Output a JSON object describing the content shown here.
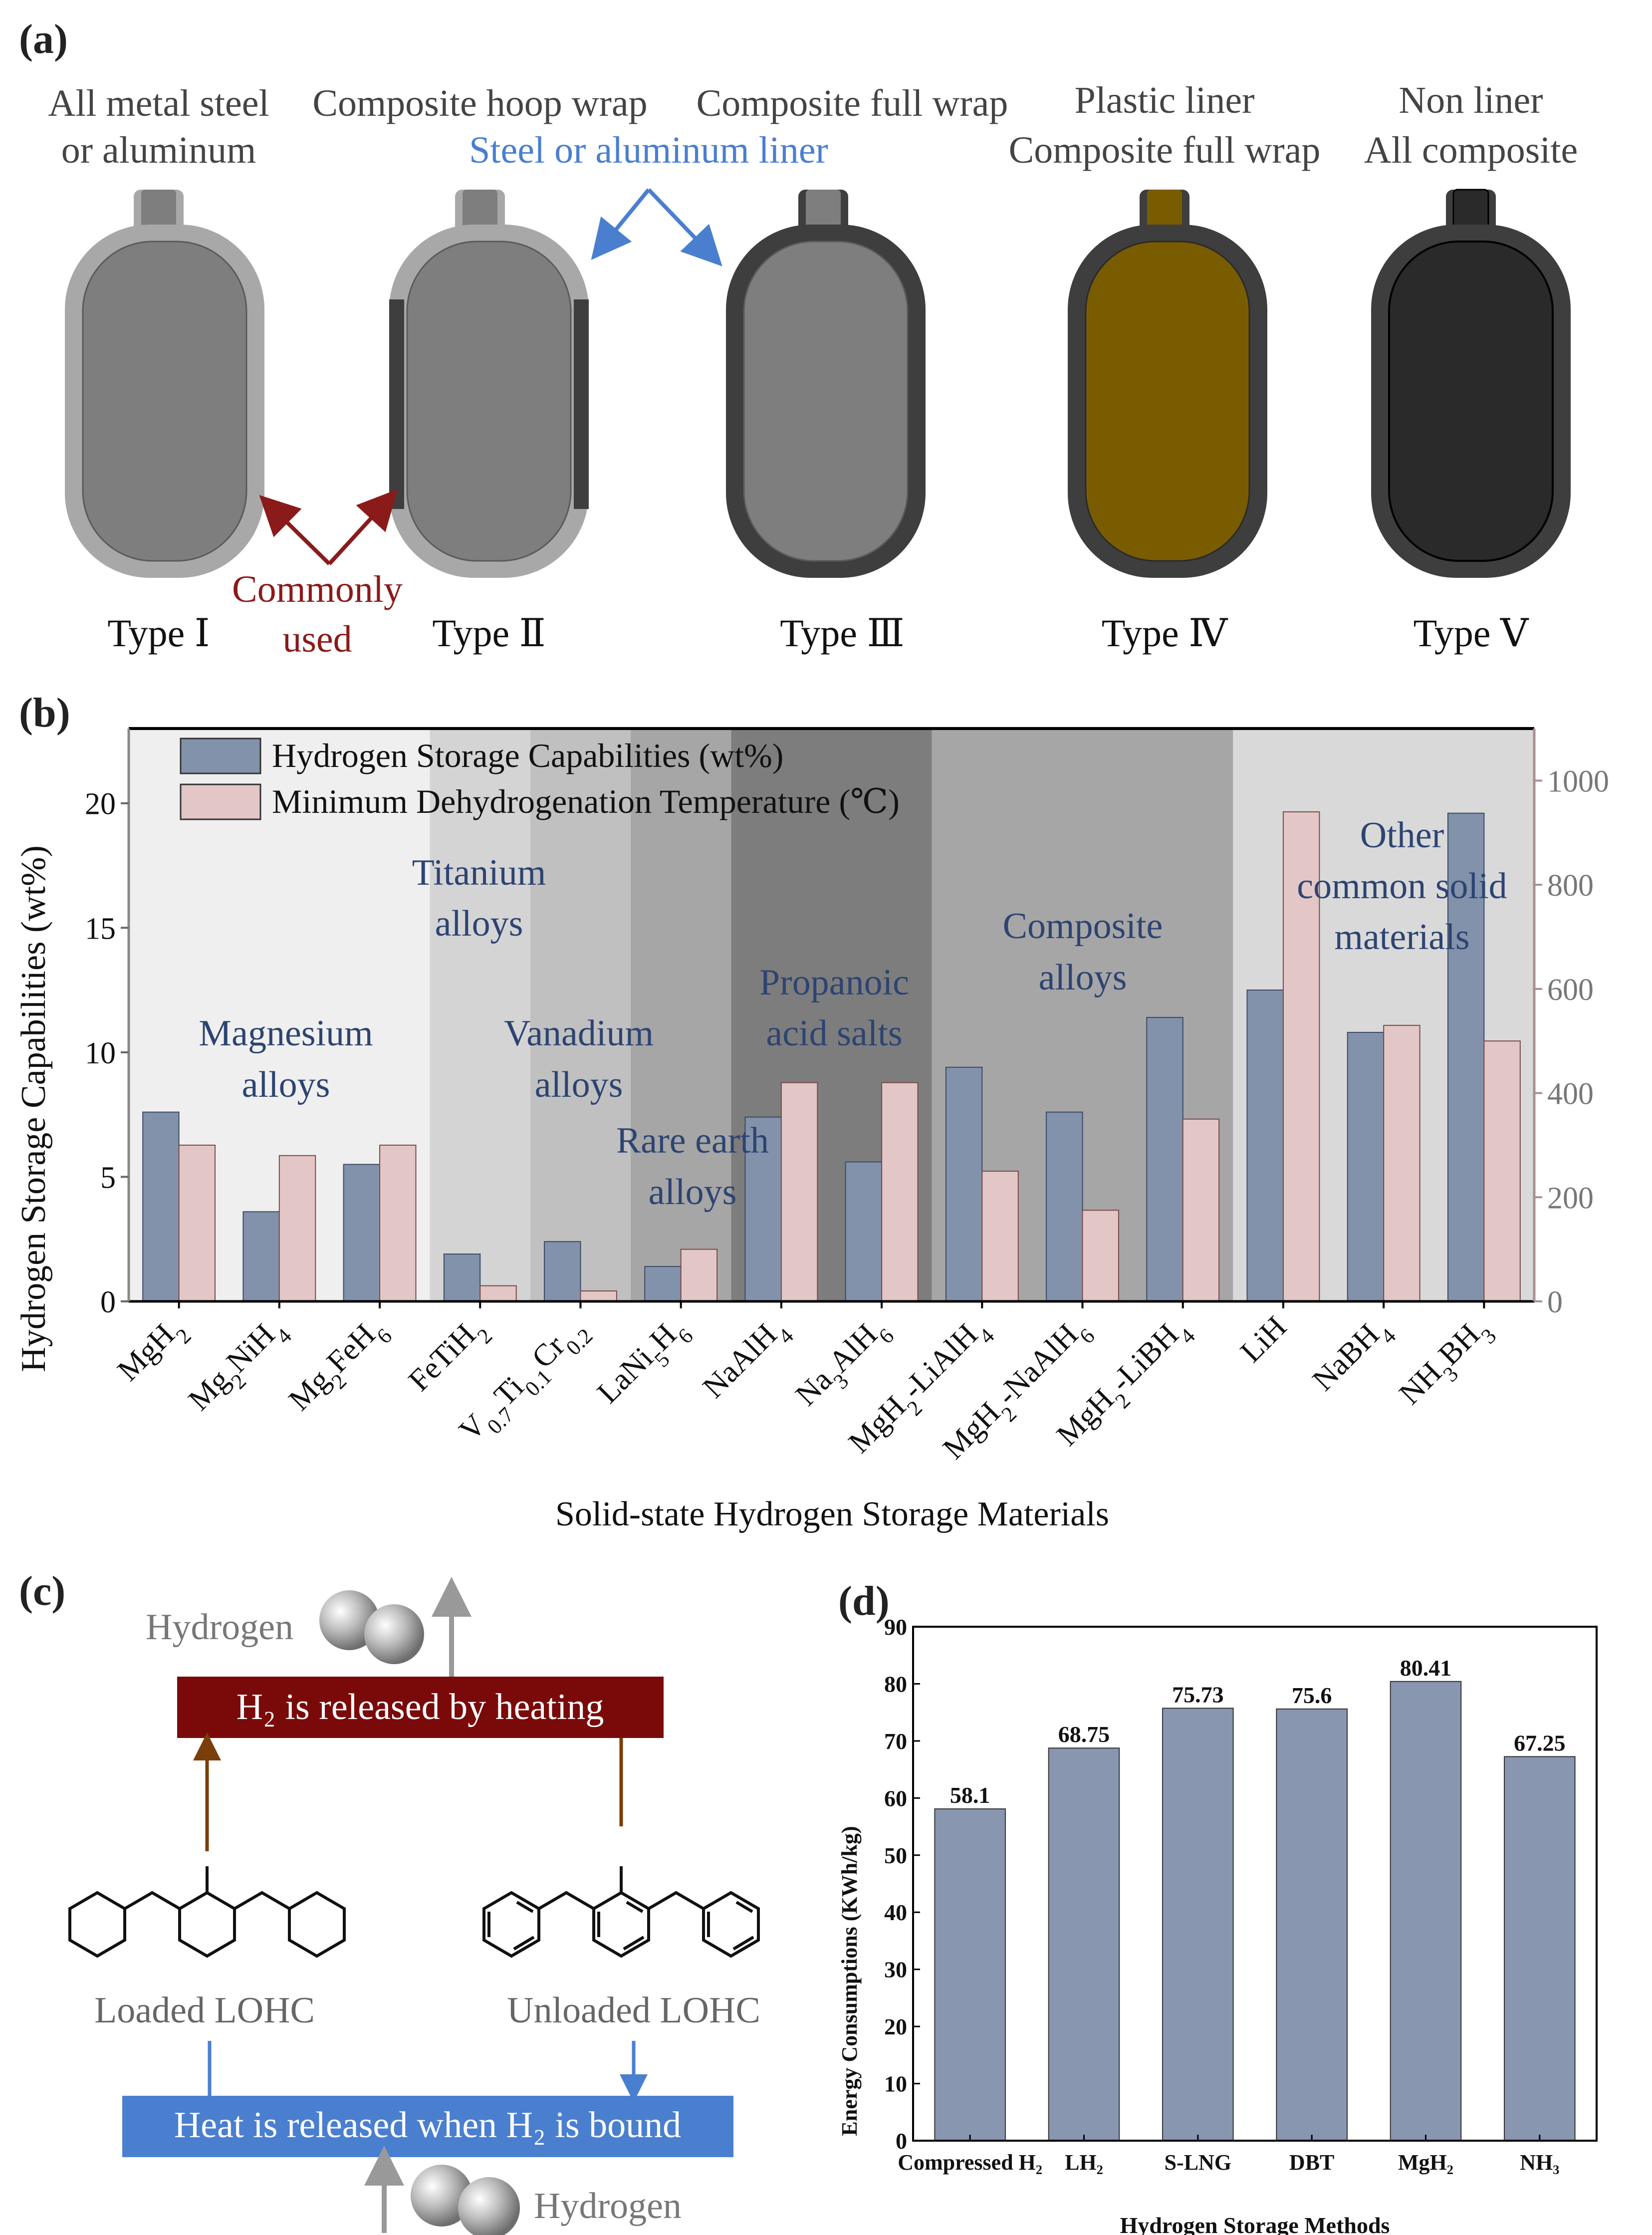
{
  "panel_a": {
    "label": "(a)",
    "headers": [
      {
        "line1": "All metal steel",
        "line2": "or aluminum"
      },
      {
        "line1": "Composite hoop wrap",
        "line2": ""
      },
      {
        "line1": "Composite full wrap",
        "line2": ""
      },
      {
        "line1": "Plastic liner",
        "line2": "Composite full wrap"
      },
      {
        "line1": "Non liner",
        "line2": "All composite"
      }
    ],
    "shared_liner_note": "Steel or aluminum liner",
    "commonly_used": {
      "line1": "Commonly",
      "line2": "used"
    },
    "type_labels": [
      "Type  Ⅰ",
      "Type  Ⅱ",
      "Type  Ⅲ",
      "Type  Ⅳ",
      "Type  Ⅴ"
    ],
    "colors": {
      "steel_outer": "#a8a8a8",
      "steel_inner": "#7e7e7e",
      "composite": "#3e3e3e",
      "plastic_liner": "#7a5c00",
      "red_arrow": "#8b1a1a",
      "blue_arrow": "#4a7fd0"
    }
  },
  "panel_b": {
    "label": "(b)",
    "legend": {
      "series1": "Hydrogen Storage Capabilities (wt%)",
      "series2": "Minimum Dehydrogenation Temperature (℃)"
    },
    "groups": [
      {
        "line1": "Magnesium",
        "line2": "alloys",
        "color": "#efefef"
      },
      {
        "line1": "Titanium",
        "line2": "alloys",
        "color": "#d4d4d4"
      },
      {
        "line1": "Vanadium",
        "line2": "alloys",
        "color": "#c0c0c0"
      },
      {
        "line1": "Rare earth",
        "line2": "alloys",
        "color": "#a6a6a6"
      },
      {
        "line1": "Propanoic",
        "line2": "acid salts",
        "color": "#7d7d7d"
      },
      {
        "line1": "Composite",
        "line2": "alloys",
        "color": "#a6a6a6"
      },
      {
        "line1": "Other",
        "line2": "common solid",
        "line3": "materials",
        "color": "#d9d9d9"
      }
    ],
    "colors": {
      "series1": "#8292ab",
      "series2": "#e3c6c6"
    }
  },
  "panel_c": {
    "label": "(c)",
    "hydrogen_top": "Hydrogen",
    "release_box": "H₂ is released by heating",
    "loaded": "Loaded LOHC",
    "unloaded": "Unloaded LOHC",
    "bind_box": "Heat is released when H₂ is bound",
    "hydrogen_bottom": "Hydrogen",
    "colors": {
      "release_box": "#7a0a0a",
      "bind_box": "#4a7fd0",
      "brown_arrow": "#7a3e0a",
      "grey_arrow": "#999999"
    }
  },
  "panel_d": {
    "label": "(d)"
  },
  "chart_data": [
    {
      "type": "bar",
      "xlabel": "Solid-state Hydrogen Storage Materials",
      "ylabel": "Hydrogen Storage Capabilities (wt%)",
      "y2label": "",
      "ylim": [
        0,
        23
      ],
      "y2lim": [
        0,
        1100
      ],
      "yticks": [
        0,
        5,
        10,
        15,
        20
      ],
      "y2ticks": [
        0,
        200,
        400,
        600,
        800,
        1000
      ],
      "categories": [
        "MgH2",
        "Mg2NiH4",
        "Mg2FeH6",
        "FeTiH2",
        "V0.7Ti0.1Cr0.2",
        "LaNi5H6",
        "NaAlH4",
        "Na3AlH6",
        "MgH2-LiAlH4",
        "MgH2-NaAlH6",
        "MgH2-LiBH4",
        "LiH",
        "NaBH4",
        "NH3BH3"
      ],
      "series": [
        {
          "name": "Hydrogen Storage Capabilities (wt%)",
          "axis": "left",
          "values": [
            7.6,
            3.6,
            5.5,
            1.9,
            2.4,
            1.4,
            7.4,
            5.6,
            9.4,
            7.6,
            11.4,
            12.5,
            10.8,
            19.6
          ]
        },
        {
          "name": "Minimum Dehydrogenation Temperature (℃)",
          "axis": "right",
          "values": [
            300,
            280,
            300,
            30,
            20,
            100,
            420,
            420,
            250,
            175,
            350,
            940,
            530,
            500
          ]
        }
      ],
      "legend": "top-left"
    },
    {
      "type": "bar",
      "xlabel": "Hydrogen Storage Methods",
      "ylabel": "Energy Consumptions (KWh/kg)",
      "ylim": [
        0,
        90
      ],
      "yticks": [
        0,
        10,
        20,
        30,
        40,
        50,
        60,
        70,
        80,
        90
      ],
      "categories": [
        "Compressed H₂",
        "LH₂",
        "S-LNG",
        "DBT",
        "MgH₂",
        "NH₃"
      ],
      "values": [
        58.1,
        68.75,
        75.73,
        75.6,
        80.41,
        67.25
      ],
      "data_labels": [
        "58.1",
        "68.75",
        "75.73",
        "75.6",
        "80.41",
        "67.25"
      ],
      "color": "#8896b0"
    }
  ]
}
